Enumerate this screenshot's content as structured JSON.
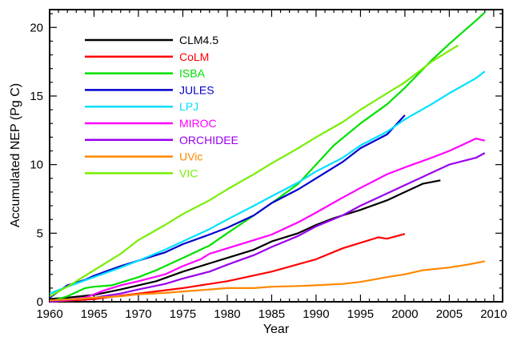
{
  "chart_data": {
    "type": "line",
    "xlabel": "Year",
    "ylabel": "Accumulated NEP (Pg C)",
    "xlim": [
      1960,
      2011
    ],
    "ylim": [
      0,
      21.3
    ],
    "xticks": [
      1960,
      1965,
      1970,
      1975,
      1980,
      1985,
      1990,
      1995,
      2000,
      2005,
      2010
    ],
    "yticks": [
      0,
      5,
      10,
      15,
      20
    ],
    "legend_position": "top-left",
    "grid": false,
    "series": [
      {
        "name": "CLM4.5",
        "color": "#000000",
        "x": [
          1960,
          1962,
          1965,
          1968,
          1970,
          1972,
          1975,
          1978,
          1980,
          1983,
          1985,
          1988,
          1990,
          1992,
          1995,
          1998,
          2000,
          2002,
          2004
        ],
        "y": [
          0.2,
          0.3,
          0.5,
          0.9,
          1.2,
          1.5,
          2.2,
          2.8,
          3.2,
          3.8,
          4.4,
          5.0,
          5.6,
          6.1,
          6.7,
          7.4,
          8.0,
          8.6,
          8.85
        ]
      },
      {
        "name": "CoLM",
        "color": "#ff0000",
        "x": [
          1960,
          1965,
          1970,
          1975,
          1980,
          1985,
          1990,
          1993,
          1995,
          1997,
          1998,
          2000
        ],
        "y": [
          0.0,
          0.2,
          0.6,
          1.0,
          1.5,
          2.2,
          3.1,
          3.9,
          4.3,
          4.7,
          4.6,
          4.95
        ]
      },
      {
        "name": "ISBA",
        "color": "#00e000",
        "x": [
          1960,
          1962,
          1964,
          1965,
          1967,
          1970,
          1972,
          1975,
          1978,
          1980,
          1983,
          1985,
          1988,
          1990,
          1992,
          1995,
          1998,
          2000,
          2003,
          2005,
          2008,
          2009
        ],
        "y": [
          0.0,
          0.4,
          1.0,
          1.1,
          1.2,
          1.8,
          2.3,
          3.2,
          4.1,
          5.0,
          6.3,
          7.2,
          8.6,
          10.0,
          11.4,
          13.0,
          14.4,
          15.6,
          17.6,
          18.8,
          20.5,
          21.1
        ]
      },
      {
        "name": "JULES",
        "color": "#0000cc",
        "x": [
          1960,
          1962,
          1963,
          1964,
          1965,
          1968,
          1970,
          1973,
          1975,
          1978,
          1980,
          1983,
          1985,
          1988,
          1990,
          1993,
          1995,
          1998,
          2000
        ],
        "y": [
          0.3,
          1.2,
          1.4,
          1.6,
          1.9,
          2.6,
          3.0,
          3.6,
          4.2,
          4.9,
          5.4,
          6.3,
          7.2,
          8.2,
          9.0,
          10.2,
          11.2,
          12.2,
          13.6
        ]
      },
      {
        "name": "LPJ",
        "color": "#00e0ff",
        "x": [
          1960,
          1962,
          1965,
          1968,
          1970,
          1973,
          1975,
          1978,
          1980,
          1983,
          1985,
          1988,
          1990,
          1993,
          1995,
          1998,
          2000,
          2003,
          2005,
          2008,
          2009
        ],
        "y": [
          0.6,
          1.1,
          1.8,
          2.5,
          3.0,
          3.8,
          4.4,
          5.3,
          6.0,
          7.0,
          7.7,
          8.7,
          9.5,
          10.5,
          11.4,
          12.4,
          13.3,
          14.4,
          15.2,
          16.3,
          16.8
        ]
      },
      {
        "name": "MIROC",
        "color": "#ff00ff",
        "x": [
          1960,
          1964,
          1966,
          1968,
          1970,
          1973,
          1975,
          1977,
          1978,
          1980,
          1983,
          1985,
          1988,
          1990,
          1993,
          1995,
          1998,
          2000,
          2003,
          2005,
          2008,
          2009
        ],
        "y": [
          0.0,
          0.3,
          0.8,
          1.2,
          1.5,
          2.0,
          2.6,
          3.1,
          3.5,
          3.9,
          4.5,
          4.9,
          5.8,
          6.5,
          7.6,
          8.3,
          9.3,
          9.8,
          10.5,
          11.0,
          11.9,
          11.75
        ]
      },
      {
        "name": "ORCHIDEE",
        "color": "#9900ee",
        "x": [
          1960,
          1965,
          1968,
          1970,
          1973,
          1975,
          1978,
          1980,
          1983,
          1985,
          1988,
          1990,
          1993,
          1995,
          1998,
          2000,
          2003,
          2005,
          2008,
          2009
        ],
        "y": [
          0.0,
          0.3,
          0.6,
          0.9,
          1.3,
          1.7,
          2.2,
          2.7,
          3.4,
          4.0,
          4.8,
          5.5,
          6.3,
          7.0,
          7.9,
          8.5,
          9.4,
          10.0,
          10.5,
          10.85
        ]
      },
      {
        "name": "UVic",
        "color": "#ff8800",
        "x": [
          1960,
          1963,
          1965,
          1968,
          1970,
          1973,
          1975,
          1978,
          1980,
          1983,
          1985,
          1988,
          1990,
          1993,
          1995,
          1998,
          2000,
          2002,
          2005,
          2007,
          2009
        ],
        "y": [
          0.1,
          0.2,
          0.3,
          0.4,
          0.55,
          0.65,
          0.75,
          0.9,
          1.0,
          1.0,
          1.1,
          1.15,
          1.2,
          1.3,
          1.45,
          1.8,
          2.0,
          2.3,
          2.5,
          2.7,
          2.95
        ]
      },
      {
        "name": "VIC",
        "color": "#77ee00",
        "x": [
          1960,
          1962,
          1965,
          1968,
          1970,
          1973,
          1975,
          1978,
          1980,
          1983,
          1985,
          1988,
          1990,
          1993,
          1995,
          1998,
          2000,
          2003,
          2006
        ],
        "y": [
          0.4,
          1.1,
          2.3,
          3.5,
          4.5,
          5.6,
          6.4,
          7.4,
          8.2,
          9.3,
          10.1,
          11.2,
          12.0,
          13.1,
          14.0,
          15.2,
          16.0,
          17.5,
          18.7
        ]
      }
    ]
  }
}
